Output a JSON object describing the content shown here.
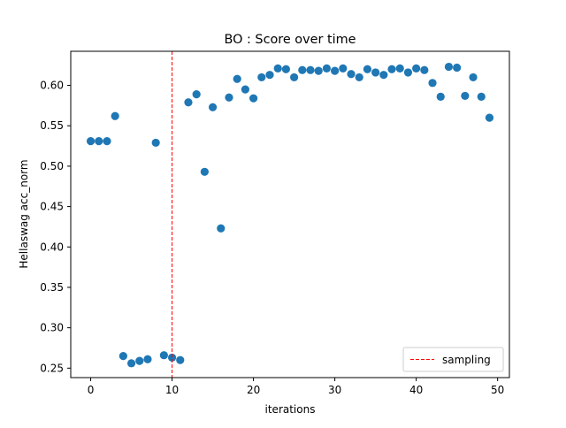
{
  "chart_data": {
    "type": "scatter",
    "title": "BO : Score over time",
    "xlabel": "iterations",
    "ylabel": "Hellaswag acc_norm",
    "xlim": [
      -2.45,
      51.45
    ],
    "ylim": [
      0.2383,
      0.6422
    ],
    "x_ticks": [
      0,
      10,
      20,
      30,
      40,
      50
    ],
    "x_tick_labels": [
      "0",
      "10",
      "20",
      "30",
      "40",
      "50"
    ],
    "y_ticks": [
      0.25,
      0.3,
      0.35,
      0.4,
      0.45,
      0.5,
      0.55,
      0.6
    ],
    "y_tick_labels": [
      "0.25",
      "0.30",
      "0.35",
      "0.40",
      "0.45",
      "0.50",
      "0.55",
      "0.60"
    ],
    "grid": false,
    "legend_position": "lower-right",
    "series": [
      {
        "kind": "scatter",
        "color": "#1f77b4",
        "x": [
          0,
          1,
          2,
          3,
          4,
          5,
          6,
          7,
          8,
          9,
          10,
          11,
          12,
          13,
          14,
          15,
          16,
          17,
          18,
          19,
          20,
          21,
          22,
          23,
          24,
          25,
          26,
          27,
          28,
          29,
          30,
          31,
          32,
          33,
          34,
          35,
          36,
          37,
          38,
          39,
          40,
          41,
          42,
          43,
          44,
          45,
          46,
          47,
          48,
          49
        ],
        "y": [
          0.531,
          0.531,
          0.531,
          0.562,
          0.265,
          0.256,
          0.259,
          0.261,
          0.529,
          0.266,
          0.263,
          0.26,
          0.579,
          0.589,
          0.493,
          0.573,
          0.423,
          0.585,
          0.608,
          0.595,
          0.584,
          0.61,
          0.613,
          0.621,
          0.62,
          0.61,
          0.619,
          0.619,
          0.618,
          0.621,
          0.618,
          0.621,
          0.614,
          0.61,
          0.62,
          0.616,
          0.613,
          0.62,
          0.621,
          0.616,
          0.621,
          0.619,
          0.603,
          0.586,
          0.623,
          0.622,
          0.587,
          0.61,
          0.586,
          0.56
        ]
      }
    ],
    "vlines": [
      {
        "x": 10,
        "color": "#ff0000",
        "style": "dashed",
        "name": "sampling"
      }
    ]
  }
}
